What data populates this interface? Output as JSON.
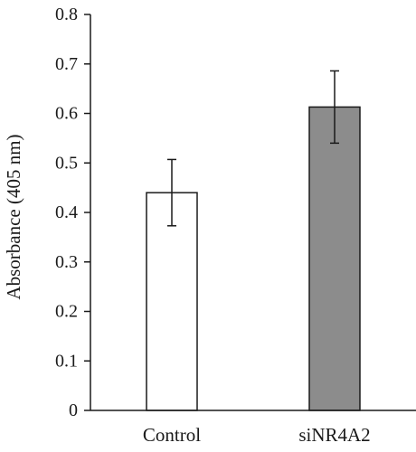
{
  "chart_data": {
    "type": "bar",
    "ylabel": "Absorbance (405 nm)",
    "categories": [
      "Control",
      "siNR4A2"
    ],
    "values": [
      0.44,
      0.613
    ],
    "errors": [
      0.067,
      0.073
    ],
    "bar_colors": [
      "#ffffff",
      "#8c8c8c"
    ],
    "bar_outline": "#1a1a1a",
    "ylim": [
      0,
      0.8
    ],
    "yticks": [
      0,
      0.1,
      0.2,
      0.3,
      0.4,
      0.5,
      0.6,
      0.7,
      0.8
    ],
    "ytick_labels": [
      "0",
      "0.1",
      "0.2",
      "0.3",
      "0.4",
      "0.5",
      "0.6",
      "0.7",
      "0.8"
    ],
    "grid": false,
    "legend": "none"
  }
}
